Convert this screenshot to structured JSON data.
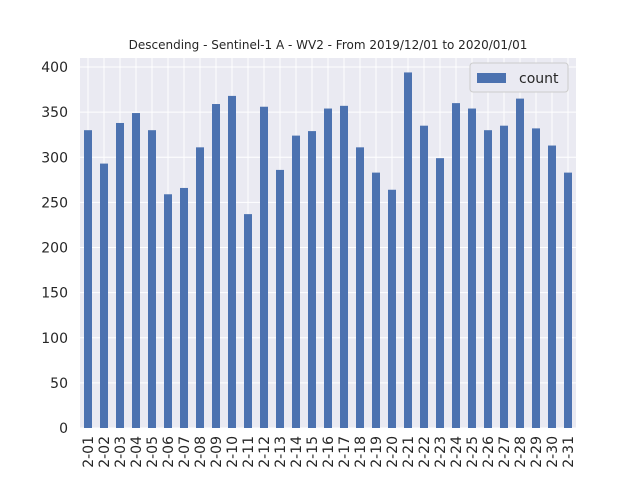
{
  "chart_data": {
    "type": "bar",
    "title": "Descending - Sentinel-1 A - WV2 - From 2019/12/01 to 2020/01/01",
    "xlabel": "",
    "ylabel": "",
    "ylim": [
      0,
      410
    ],
    "yticks": [
      0,
      50,
      100,
      150,
      200,
      250,
      300,
      350,
      400
    ],
    "grid": true,
    "legend_position": "top-right",
    "categories": [
      "2-01",
      "2-02",
      "2-03",
      "2-04",
      "2-05",
      "2-06",
      "2-07",
      "2-08",
      "2-09",
      "2-10",
      "2-11",
      "2-12",
      "2-13",
      "2-14",
      "2-15",
      "2-16",
      "2-17",
      "2-18",
      "2-19",
      "2-20",
      "2-21",
      "2-22",
      "2-23",
      "2-24",
      "2-25",
      "2-26",
      "2-27",
      "2-28",
      "2-29",
      "2-30",
      "2-31"
    ],
    "series": [
      {
        "name": "count",
        "color": "#4c72b0",
        "values": [
          330,
          293,
          338,
          349,
          330,
          259,
          266,
          311,
          359,
          368,
          237,
          356,
          286,
          324,
          329,
          354,
          357,
          311,
          283,
          264,
          394,
          335,
          299,
          360,
          354,
          330,
          335,
          365,
          332,
          313,
          283
        ]
      }
    ]
  },
  "colors": {
    "plot_background": "#eaeaf2",
    "grid": "#ffffff",
    "bar": "#4c72b0",
    "text": "#262626"
  }
}
